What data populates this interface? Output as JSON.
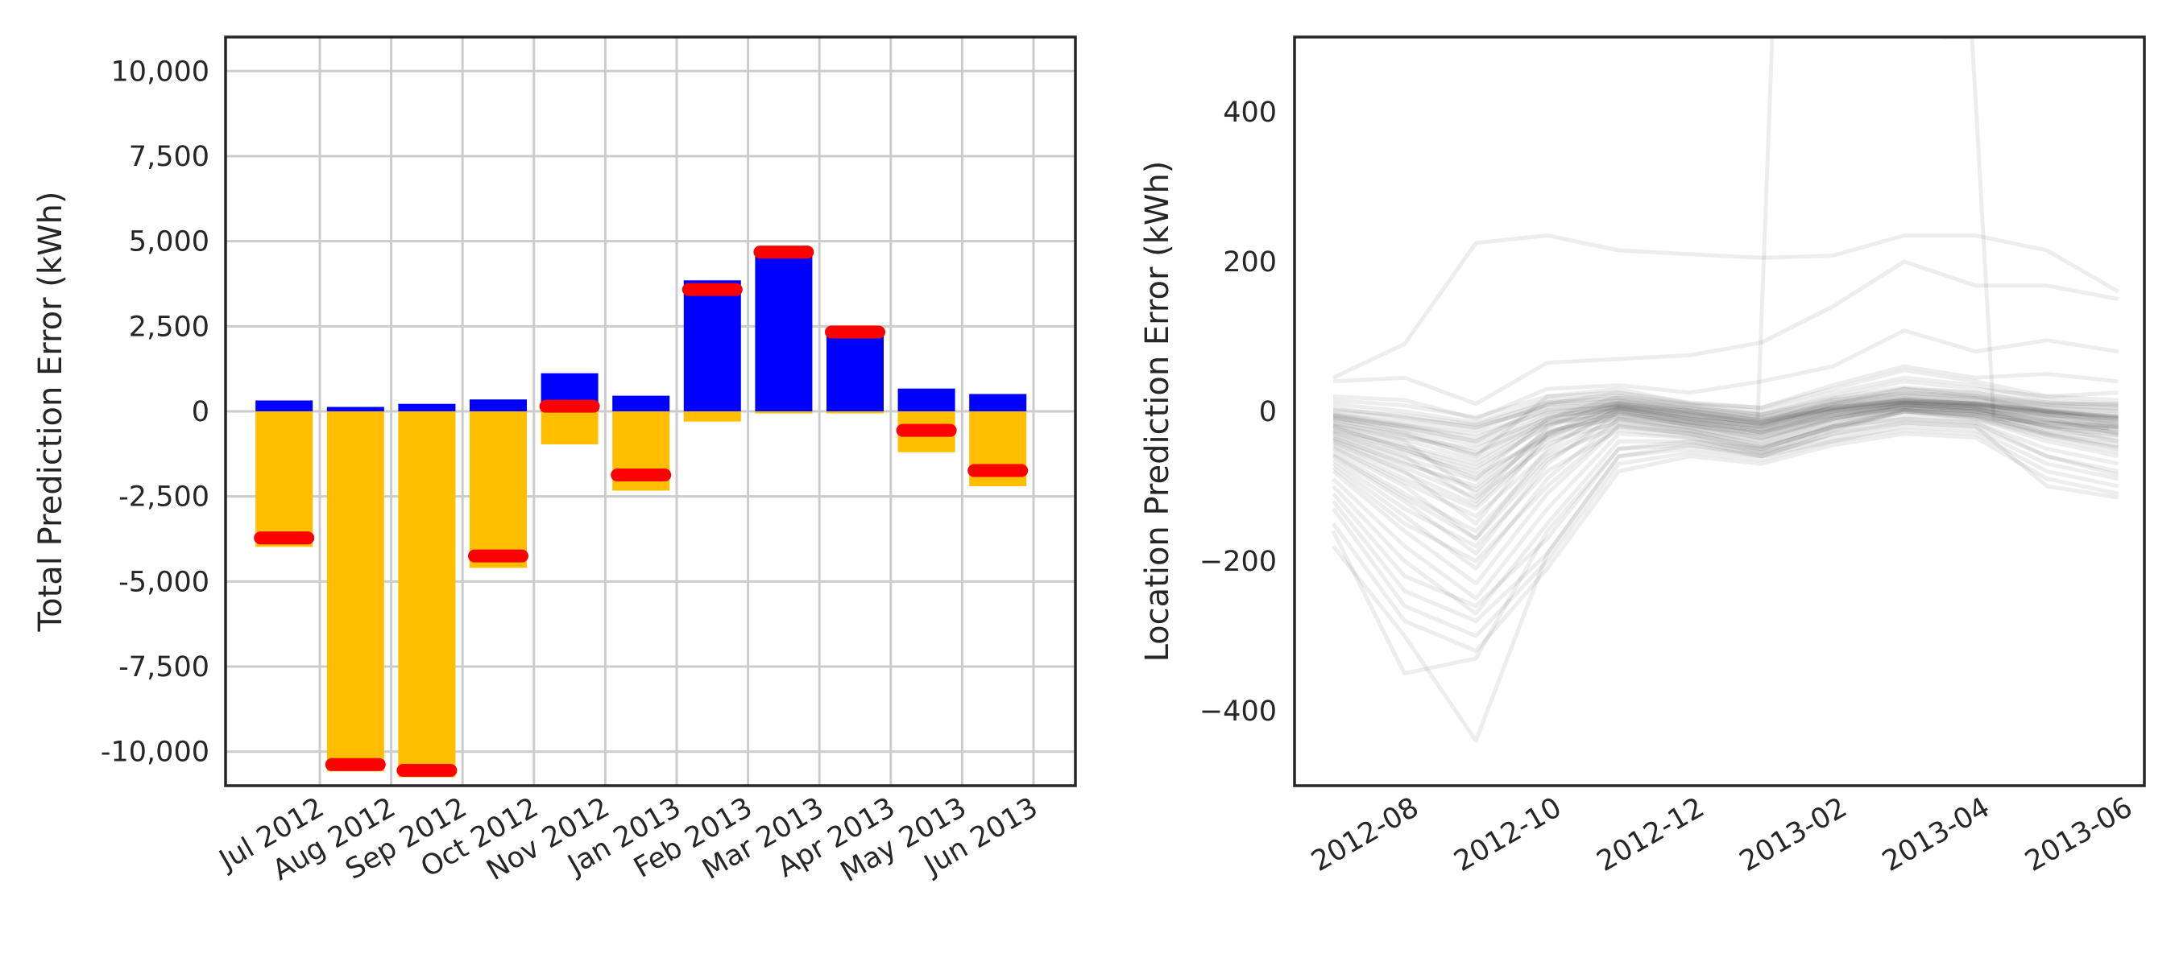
{
  "chart_data": [
    {
      "type": "bar",
      "ylabel": "Total Prediction Error (kWh)",
      "xlabel": "",
      "ylim": [
        -11000,
        11000
      ],
      "yticks": [
        10000,
        7500,
        5000,
        2500,
        0,
        -2500,
        -5000,
        -7500,
        -10000
      ],
      "ytick_labels": [
        "10,000",
        "7,500",
        "5,000",
        "2,500",
        "0",
        "-2,500",
        "-5,000",
        "-7,500",
        "-10,000"
      ],
      "grid": true,
      "categories": [
        "Jul 2012",
        "Aug 2012",
        "Sep 2012",
        "Oct 2012",
        "Nov 2012",
        "Jan 2013",
        "Feb 2013",
        "Mar 2013",
        "Apr 2013",
        "May 2013",
        "Jun 2013"
      ],
      "series": [
        {
          "color": "#0000ff",
          "values": [
            320,
            130,
            220,
            350,
            1120,
            460,
            3850,
            4680,
            2350,
            670,
            510
          ]
        },
        {
          "color": "#ffbf00",
          "values": [
            -3980,
            -10580,
            -10750,
            -4600,
            -970,
            -2330,
            -300,
            -60,
            -60,
            -1200,
            -2200
          ]
        },
        {
          "color": "#ff0000",
          "marker": "horizontal line",
          "values": [
            -3720,
            -10380,
            -10550,
            -4250,
            150,
            -1870,
            3580,
            4680,
            2330,
            -560,
            -1740
          ]
        }
      ]
    },
    {
      "type": "line",
      "ylabel": "Location Prediction Error (kWh)",
      "xlabel": "",
      "ylim": [
        -500,
        500
      ],
      "yticks": [
        400,
        200,
        0,
        -200,
        -400
      ],
      "ytick_labels": [
        "400",
        "200",
        "0",
        "−200",
        "−400"
      ],
      "grid": false,
      "x": [
        "2012-07-15",
        "2012-08-15",
        "2012-09-15",
        "2012-10-15",
        "2012-11-15",
        "2012-12-15",
        "2013-01-15",
        "2013-02-15",
        "2013-03-15",
        "2013-04-15",
        "2013-05-15",
        "2013-06-15"
      ],
      "xticks": [
        "2012-08",
        "2012-10",
        "2012-12",
        "2013-02",
        "2013-04",
        "2013-06"
      ],
      "line_color": "#000000",
      "line_alpha": 0.07,
      "series": [
        {
          "values": [
            45,
            90,
            225,
            235,
            215,
            210,
            205,
            208,
            235,
            235,
            215,
            160
          ]
        },
        {
          "values": [
            40,
            45,
            10,
            65,
            70,
            75,
            92,
            140,
            200,
            168,
            168,
            150
          ]
        },
        {
          "values": [
            20,
            15,
            -10,
            30,
            35,
            25,
            40,
            60,
            108,
            80,
            95,
            80
          ]
        },
        {
          "values": [
            -10,
            -30,
            -60,
            20,
            30,
            10,
            5,
            35,
            60,
            45,
            50,
            40
          ]
        },
        {
          "values": [
            -5,
            -20,
            -40,
            10,
            25,
            5,
            -5,
            20,
            40,
            30,
            20,
            25
          ]
        },
        {
          "values": [
            -20,
            -50,
            -90,
            -10,
            20,
            0,
            -10,
            10,
            30,
            25,
            10,
            10
          ]
        },
        {
          "values": [
            -30,
            -60,
            -120,
            -20,
            15,
            -5,
            -15,
            15,
            25,
            20,
            5,
            0
          ]
        },
        {
          "values": [
            -40,
            -80,
            -150,
            -30,
            10,
            -10,
            -20,
            5,
            20,
            15,
            0,
            -10
          ]
        },
        {
          "values": [
            -50,
            -100,
            -170,
            -50,
            5,
            -15,
            -25,
            0,
            15,
            10,
            -5,
            -20
          ]
        },
        {
          "values": [
            -60,
            -120,
            -190,
            -70,
            0,
            -20,
            -30,
            -5,
            10,
            5,
            -10,
            -30
          ]
        },
        {
          "values": [
            -70,
            -140,
            -210,
            -90,
            -10,
            -25,
            -40,
            -10,
            5,
            0,
            -20,
            -40
          ]
        },
        {
          "values": [
            -80,
            -160,
            -230,
            -110,
            -20,
            -30,
            -50,
            -20,
            0,
            -5,
            -30,
            -50
          ]
        },
        {
          "values": [
            -90,
            -180,
            -250,
            -130,
            -30,
            -35,
            -55,
            -25,
            -5,
            -10,
            -40,
            -60
          ]
        },
        {
          "values": [
            -100,
            -200,
            -270,
            -150,
            -40,
            -40,
            -60,
            -30,
            -10,
            -15,
            -50,
            -70
          ]
        },
        {
          "values": [
            -110,
            -220,
            -260,
            -170,
            -50,
            -45,
            -55,
            -35,
            -15,
            -20,
            -60,
            -80
          ]
        },
        {
          "values": [
            -120,
            -240,
            -280,
            -190,
            -60,
            -50,
            -60,
            -40,
            -20,
            -25,
            -70,
            -90
          ]
        },
        {
          "values": [
            -130,
            -260,
            -300,
            -200,
            -70,
            -55,
            -65,
            -40,
            -25,
            -30,
            -80,
            -100
          ]
        },
        {
          "values": [
            -150,
            -280,
            -320,
            -210,
            -80,
            -60,
            -70,
            -45,
            -30,
            -35,
            -90,
            -110
          ]
        },
        {
          "values": [
            -160,
            -350,
            -330,
            -160,
            -50,
            -40,
            -50,
            -20,
            -10,
            -15,
            -60,
            -85
          ]
        },
        {
          "values": [
            -180,
            -300,
            -440,
            -190,
            -60,
            -45,
            -60,
            -30,
            -15,
            -20,
            -100,
            -115
          ]
        },
        {
          "values": [
            -10,
            -20,
            -30,
            0,
            5,
            -5,
            -15,
            5,
            15,
            10,
            0,
            -5
          ]
        },
        {
          "values": [
            0,
            -10,
            -20,
            5,
            10,
            0,
            -10,
            10,
            20,
            15,
            5,
            0
          ]
        },
        {
          "values": [
            -15,
            -35,
            -50,
            -5,
            0,
            -10,
            -20,
            0,
            10,
            5,
            -5,
            -10
          ]
        },
        {
          "values": [
            -25,
            -45,
            -70,
            -15,
            -5,
            -15,
            -25,
            -5,
            5,
            0,
            -15,
            -20
          ]
        },
        {
          "values": [
            -5,
            -15,
            -25,
            10,
            15,
            5,
            -5,
            15,
            30,
            20,
            10,
            5
          ]
        },
        {
          "values": [
            -35,
            -70,
            -100,
            -25,
            -10,
            -20,
            -35,
            -10,
            10,
            5,
            -20,
            -25
          ]
        },
        {
          "values": [
            -45,
            -90,
            -130,
            -40,
            -15,
            -25,
            -45,
            -15,
            5,
            0,
            -25,
            -35
          ]
        },
        {
          "values": [
            -55,
            -110,
            -160,
            -60,
            -20,
            -30,
            -50,
            -20,
            0,
            -5,
            -30,
            -45
          ]
        },
        {
          "values": [
            10,
            0,
            -15,
            15,
            20,
            10,
            0,
            25,
            45,
            35,
            15,
            10
          ]
        },
        {
          "values": [
            -65,
            -130,
            -180,
            -80,
            -25,
            -35,
            -55,
            -25,
            0,
            -10,
            -35,
            -55
          ]
        },
        {
          "values": [
            -20,
            -40,
            -110,
            -30,
            5,
            -10,
            -20,
            10,
            25,
            20,
            0,
            -15
          ]
        },
        {
          "values": [
            -8,
            -25,
            -45,
            -10,
            12,
            2,
            -12,
            8,
            18,
            12,
            2,
            -8
          ]
        },
        {
          "values": [
            -12,
            -28,
            -55,
            -15,
            8,
            -2,
            -18,
            2,
            12,
            8,
            -2,
            -12
          ]
        },
        {
          "values": [
            -28,
            -55,
            -85,
            -35,
            2,
            -12,
            -28,
            -2,
            8,
            2,
            -12,
            -22
          ]
        },
        {
          "values": [
            -38,
            -75,
            -115,
            -45,
            -2,
            -18,
            -32,
            -8,
            4,
            -2,
            -18,
            -28
          ]
        },
        {
          "values": [
            2,
            -5,
            -18,
            12,
            18,
            8,
            -4,
            18,
            32,
            25,
            12,
            8
          ]
        },
        {
          "values": [
            -18,
            -38,
            -65,
            -12,
            6,
            -6,
            -16,
            6,
            16,
            10,
            -4,
            -14
          ]
        },
        {
          "values": [
            -48,
            -95,
            -140,
            -55,
            -8,
            -22,
            -38,
            -12,
            2,
            -4,
            -22,
            -32
          ]
        },
        {
          "values": [
            5,
            -8,
            -22,
            8,
            14,
            4,
            -8,
            12,
            24,
            18,
            8,
            4
          ]
        },
        {
          "values": [
            -3,
            -18,
            -35,
            2,
            10,
            0,
            -12,
            4,
            14,
            10,
            0,
            -6
          ]
        },
        {
          "values": [
            -22,
            -48,
            -75,
            -20,
            3,
            -8,
            -22,
            0,
            12,
            6,
            -8,
            -18
          ]
        },
        {
          "values": [
            -32,
            -62,
            -92,
            -28,
            -3,
            -14,
            -28,
            -6,
            8,
            3,
            -14,
            -24
          ]
        },
        {
          "values": [
            15,
            8,
            -8,
            20,
            25,
            12,
            5,
            30,
            55,
            40,
            20,
            15
          ]
        },
        {
          "values": [
            -42,
            -82,
            -125,
            -35,
            -6,
            -18,
            -36,
            -10,
            6,
            0,
            -20,
            -30
          ]
        },
        {
          "values": [
            -58,
            -115,
            -170,
            -65,
            -12,
            -26,
            -44,
            -18,
            2,
            -6,
            -28,
            -40
          ]
        },
        {
          "values": [
            -75,
            -150,
            -200,
            -100,
            -18,
            -30,
            -48,
            -22,
            0,
            -8,
            -32,
            -48
          ]
        },
        {
          "values": [
            -6,
            -22,
            -40,
            -2,
            9,
            -2,
            -14,
            3,
            13,
            9,
            -1,
            -7
          ]
        },
        {
          "values": [
            -16,
            -32,
            -58,
            -8,
            7,
            -4,
            -17,
            5,
            15,
            11,
            1,
            -9
          ]
        },
        {
          "values": [
            -26,
            -52,
            -80,
            -18,
            4,
            -9,
            -24,
            1,
            11,
            7,
            -6,
            -16
          ]
        },
        {
          "values": [
            -36,
            -68,
            -105,
            -32,
            0,
            -15,
            -30,
            -4,
            9,
            4,
            -12,
            -21
          ]
        }
      ]
    }
  ]
}
